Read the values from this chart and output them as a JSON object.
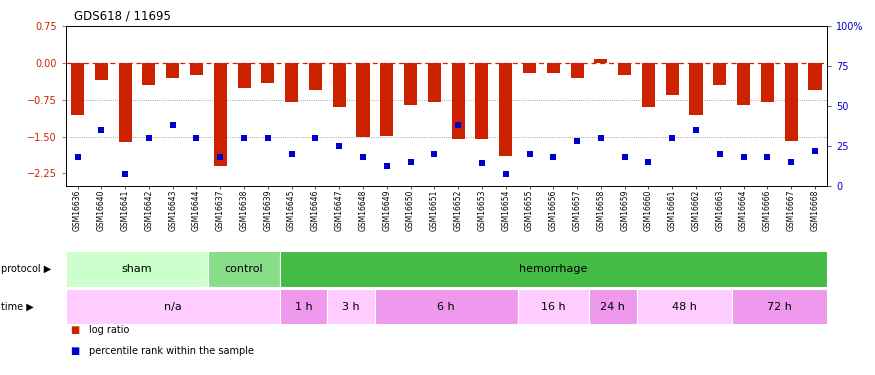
{
  "title": "GDS618 / 11695",
  "samples": [
    "GSM16636",
    "GSM16640",
    "GSM16641",
    "GSM16642",
    "GSM16643",
    "GSM16644",
    "GSM16637",
    "GSM16638",
    "GSM16639",
    "GSM16645",
    "GSM16646",
    "GSM16647",
    "GSM16648",
    "GSM16649",
    "GSM16650",
    "GSM16651",
    "GSM16652",
    "GSM16653",
    "GSM16654",
    "GSM16655",
    "GSM16656",
    "GSM16657",
    "GSM16658",
    "GSM16659",
    "GSM16660",
    "GSM16661",
    "GSM16662",
    "GSM16663",
    "GSM16664",
    "GSM16666",
    "GSM16667",
    "GSM16668"
  ],
  "log_ratio": [
    -1.05,
    -0.35,
    -1.62,
    -0.45,
    -0.3,
    -0.25,
    -2.1,
    -0.5,
    -0.4,
    -0.8,
    -0.55,
    -0.9,
    -1.5,
    -1.48,
    -0.85,
    -0.8,
    -1.55,
    -1.55,
    -1.9,
    -0.2,
    -0.2,
    -0.3,
    0.08,
    -0.25,
    -0.9,
    -0.65,
    -1.05,
    -0.45,
    -0.85,
    -0.8,
    -1.6,
    -0.55
  ],
  "percentile_rank": [
    18,
    35,
    7,
    30,
    38,
    30,
    18,
    30,
    30,
    20,
    30,
    25,
    18,
    12,
    15,
    20,
    38,
    14,
    7,
    20,
    18,
    28,
    30,
    18,
    15,
    30,
    35,
    20,
    18,
    18,
    15,
    22
  ],
  "ylim_left": [
    -2.5,
    0.75
  ],
  "ylim_right": [
    0,
    100
  ],
  "yticks_left": [
    0.75,
    0,
    -0.75,
    -1.5,
    -2.25
  ],
  "yticks_right": [
    100,
    75,
    50,
    25,
    0
  ],
  "bar_color": "#cc2200",
  "scatter_color": "#0000cc",
  "zero_line_color": "#cc2200",
  "protocol_groups": [
    {
      "label": "sham",
      "start": 0,
      "end": 6,
      "color": "#ccffcc"
    },
    {
      "label": "control",
      "start": 6,
      "end": 9,
      "color": "#88dd88"
    },
    {
      "label": "hemorrhage",
      "start": 9,
      "end": 32,
      "color": "#44bb44"
    }
  ],
  "time_groups": [
    {
      "label": "n/a",
      "start": 0,
      "end": 9,
      "color": "#ffccff"
    },
    {
      "label": "1 h",
      "start": 9,
      "end": 11,
      "color": "#ee99ee"
    },
    {
      "label": "3 h",
      "start": 11,
      "end": 13,
      "color": "#ffccff"
    },
    {
      "label": "6 h",
      "start": 13,
      "end": 19,
      "color": "#ee99ee"
    },
    {
      "label": "16 h",
      "start": 19,
      "end": 22,
      "color": "#ffccff"
    },
    {
      "label": "24 h",
      "start": 22,
      "end": 24,
      "color": "#ee99ee"
    },
    {
      "label": "48 h",
      "start": 24,
      "end": 28,
      "color": "#ffccff"
    },
    {
      "label": "72 h",
      "start": 28,
      "end": 32,
      "color": "#ee99ee"
    }
  ],
  "legend_items": [
    {
      "label": "log ratio",
      "color": "#cc2200"
    },
    {
      "label": "percentile rank within the sample",
      "color": "#0000cc"
    }
  ],
  "fig_width": 8.75,
  "fig_height": 3.75,
  "dpi": 100
}
